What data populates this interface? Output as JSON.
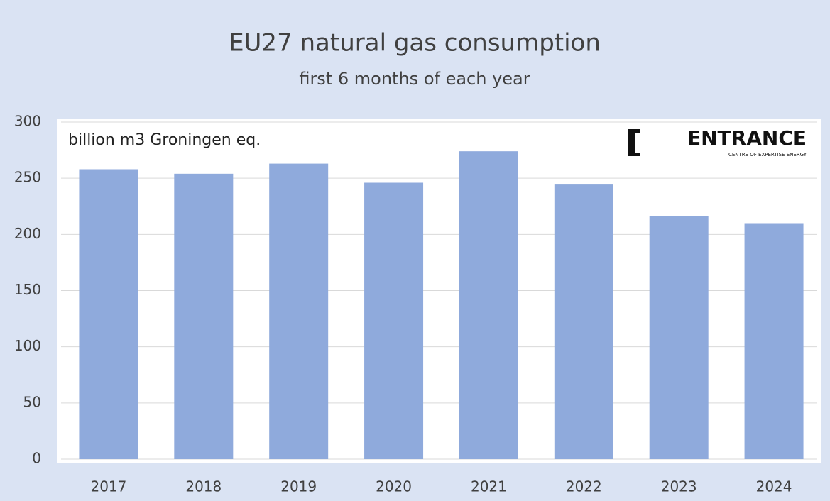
{
  "chart_data": {
    "type": "bar",
    "title": "EU27 natural gas consumption",
    "subtitle": "first 6 months of each year",
    "annotation": "billion m3 Groningen eq.",
    "logo": {
      "name": "ENTRANCE",
      "tagline": "CENTRE OF EXPERTISE ENERGY"
    },
    "categories": [
      "2017",
      "2018",
      "2019",
      "2020",
      "2021",
      "2022",
      "2023",
      "2024"
    ],
    "values": [
      258,
      254,
      263,
      246,
      274,
      245,
      216,
      210
    ],
    "color": "#8faadc",
    "ylim": [
      0,
      300
    ],
    "yticks": [
      0,
      50,
      100,
      150,
      200,
      250,
      300
    ],
    "grid": true
  }
}
